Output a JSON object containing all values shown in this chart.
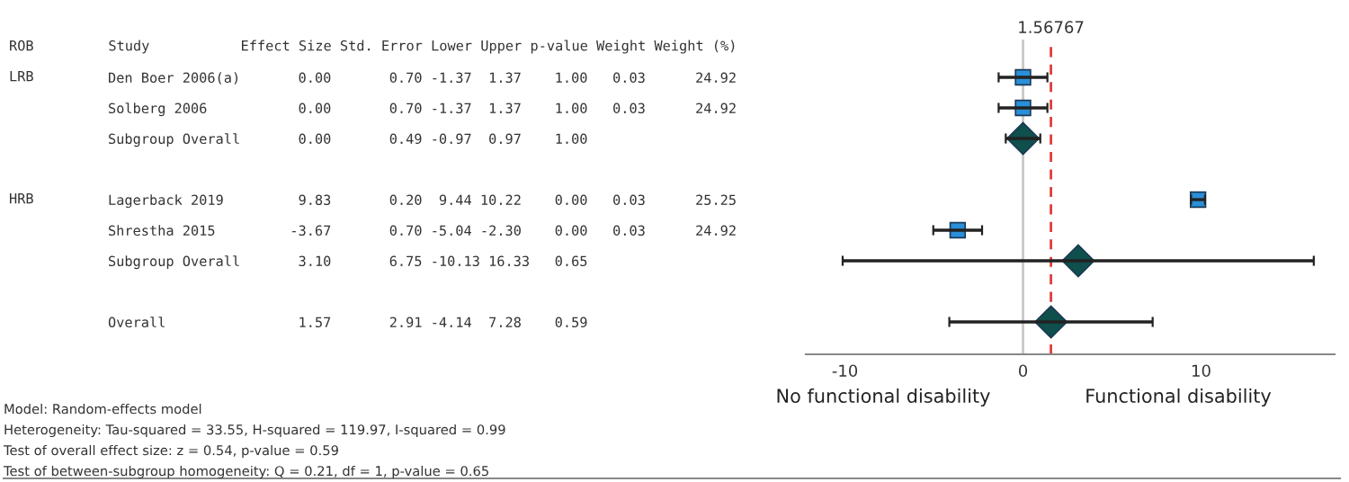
{
  "chart_data": {
    "type": "scatter",
    "orientation": "horizontal",
    "categories": [
      "Den Boer 2006(a)       0.00       0.70 -1.37  1.37    1.00   0.03      24.92",
      "Solberg 2006           0.00       0.70 -1.37  1.37    1.00   0.03      24.92",
      "Subgroup Overall       0.00       0.49 -0.97  0.97    1.00",
      null,
      "Lagerback 2019         9.83       0.20  9.44 10.22    0.00   0.03      25.25",
      "Shrestha 2015         -3.67       0.70 -5.04 -2.30    0.00   0.03      24.92",
      "Subgroup Overall       3.10       6.75 -10.13 16.33   0.65",
      null,
      "Overall                1.57       2.91 -4.14  7.28    0.59"
    ],
    "series": [
      {
        "color": "#2a8fd8",
        "marker": "square",
        "values": [
          0.0,
          0.0,
          null,
          null,
          9.83,
          -3.67,
          null,
          null,
          null
        ],
        "errors": [
          [
            -1.37,
            1.37
          ],
          [
            -1.37,
            1.37
          ],
          null,
          null,
          [
            9.44,
            10.22
          ],
          [
            -5.04,
            -2.3
          ],
          null,
          null,
          null
        ]
      },
      {
        "color": "#0f4f4c",
        "marker": "diamond",
        "values": [
          null,
          null,
          0.0,
          null,
          null,
          null,
          3.1,
          null,
          1.57
        ],
        "errors": [
          null,
          null,
          [
            -0.97,
            0.97
          ],
          null,
          null,
          null,
          [
            -10.13,
            16.33
          ],
          null,
          [
            -4.14,
            7.28
          ]
        ]
      }
    ],
    "xlim": [
      -12.2,
      17.5
    ],
    "xticks": [
      -10,
      0,
      10
    ],
    "ref_lines": [
      {
        "axis": "x",
        "value": 0,
        "color": "#c8c8c8",
        "line_style": "solid"
      },
      {
        "axis": "x",
        "value": 1.56767,
        "label": "1.56767",
        "color": "#e03c3c",
        "line_style": "dashed"
      }
    ],
    "annotations": [
      "ROB         Study           Effect Size Std. Error Lower Upper p-value Weight Weight (%)",
      "No functional disability",
      "Functional disability",
      "Model: Random-effects model",
      "Heterogeneity: Tau-squared = 33.55, H-squared = 119.97, I-squared = 0.99",
      "Test of overall effect size: z = 0.54, p-value = 0.59",
      "Test of between-subgroup homogeneity: Q = 0.21, df = 1, p-value = 0.65",
      "LRB",
      "HRB"
    ],
    "grid": false,
    "legend": false
  }
}
